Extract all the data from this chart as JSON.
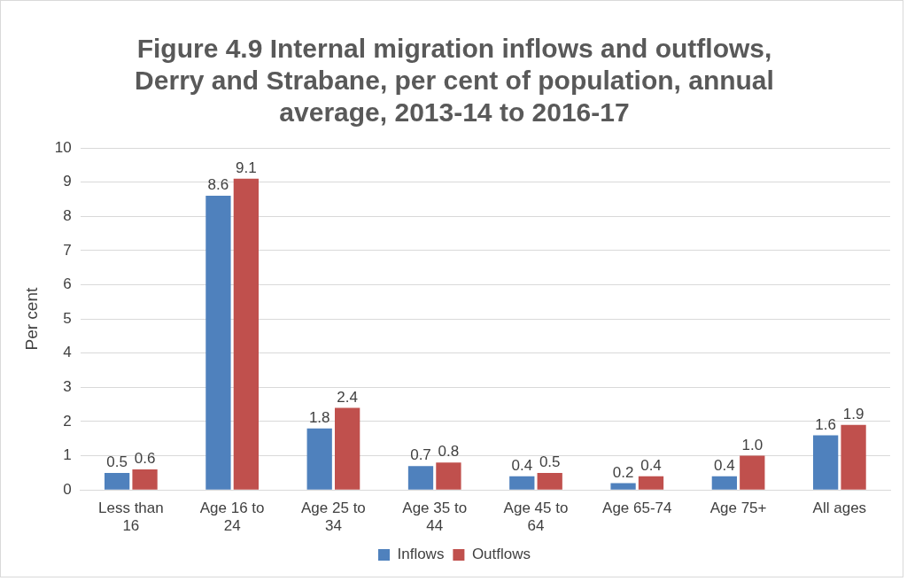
{
  "chart_data": {
    "type": "bar",
    "title": "Figure 4.9 Internal migration inflows and outflows,\nDerry and Strabane, per cent of population, annual\naverage, 2013-14 to 2016-17",
    "ylabel": "Per cent",
    "categories": [
      "Less than 16",
      "Age 16 to 24",
      "Age 25 to 34",
      "Age 35 to 44",
      "Age 45 to 64",
      "Age 65-74",
      "Age 75+",
      "All ages"
    ],
    "series": [
      {
        "name": "Inflows",
        "color": "#4f81bd",
        "values": [
          0.5,
          8.6,
          1.8,
          0.7,
          0.4,
          0.2,
          0.4,
          1.6
        ],
        "value_labels": [
          "0.5",
          "8.6",
          "1.8",
          "0.7",
          "0.4",
          "0.2",
          "0.4",
          "1.6"
        ]
      },
      {
        "name": "Outflows",
        "color": "#c0504d",
        "values": [
          0.6,
          9.1,
          2.4,
          0.8,
          0.5,
          0.4,
          1.0,
          1.9
        ],
        "value_labels": [
          "0.6",
          "9.1",
          "2.4",
          "0.8",
          "0.5",
          "0.4",
          "1.0",
          "1.9"
        ]
      }
    ],
    "ylim": [
      0,
      10
    ],
    "yticks": [
      0,
      1,
      2,
      3,
      4,
      5,
      6,
      7,
      8,
      9,
      10
    ],
    "grid": "y",
    "legend": "bottom"
  }
}
